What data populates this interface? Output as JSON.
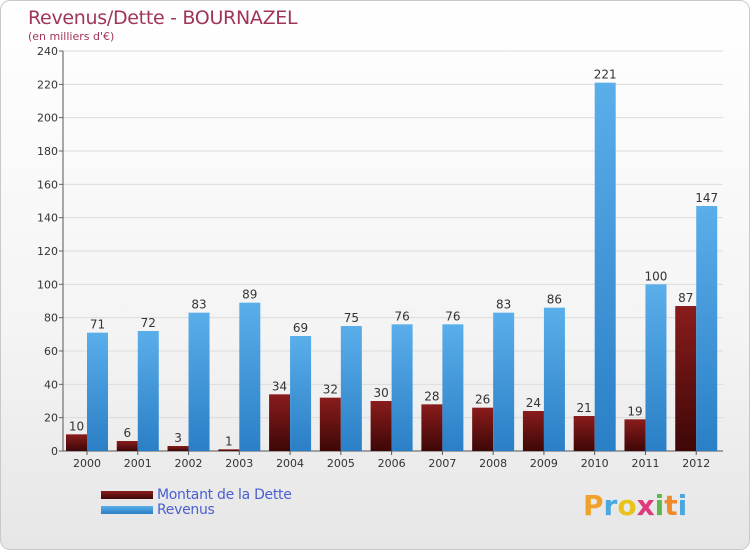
{
  "chart_data": {
    "type": "bar",
    "title": "Revenus/Dette - BOURNAZEL",
    "subtitle": "(en milliers d'€)",
    "categories": [
      "2000",
      "2001",
      "2002",
      "2003",
      "2004",
      "2005",
      "2006",
      "2007",
      "2008",
      "2009",
      "2010",
      "2011",
      "2012"
    ],
    "series": [
      {
        "name": "Montant de la Dette",
        "color": "#7a1414",
        "values": [
          10,
          6,
          3,
          1,
          34,
          32,
          30,
          28,
          26,
          24,
          21,
          19,
          87
        ]
      },
      {
        "name": "Revenus",
        "color": "#3d95dc",
        "values": [
          71,
          72,
          83,
          89,
          69,
          75,
          76,
          76,
          83,
          86,
          221,
          100,
          147
        ]
      }
    ],
    "ylim": [
      0,
      240
    ],
    "yticks": [
      0,
      20,
      40,
      60,
      80,
      100,
      120,
      140,
      160,
      180,
      200,
      220,
      240
    ],
    "grid": true,
    "legend": "bottom-left"
  },
  "logo": {
    "text": "Proxiti",
    "letters": [
      "P",
      "r",
      "o",
      "x",
      "i",
      "t",
      "i"
    ]
  }
}
